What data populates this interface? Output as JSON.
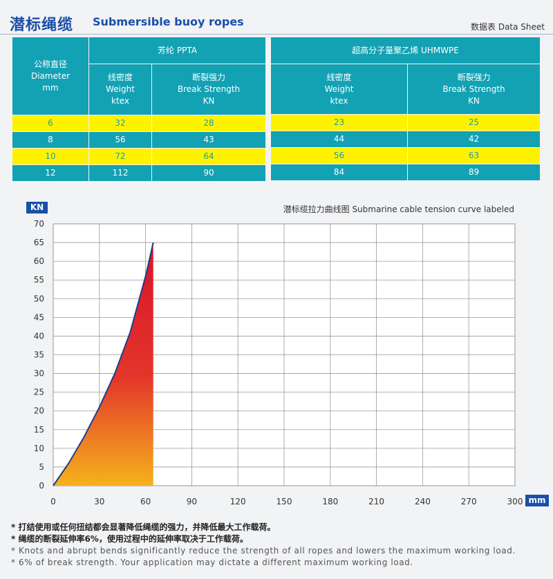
{
  "header": {
    "title_cn": "潜标绳缆",
    "title_en": "Submersible buoy ropes",
    "data_sheet": "数据表  Data Sheet"
  },
  "table": {
    "diameter_header": [
      "公称直径",
      "Diameter",
      "mm"
    ],
    "groups": [
      {
        "name": "芳纶    PPTA",
        "weight_header": [
          "线密度",
          "Weight",
          "ktex"
        ],
        "strength_header": [
          "断裂强力",
          "Break Strength",
          "KN"
        ]
      },
      {
        "name": "超高分子量聚乙烯    UHMWPE",
        "weight_header": [
          "线密度",
          "Weight",
          "ktex"
        ],
        "strength_header": [
          "断裂强力",
          "Break Strength",
          "KN"
        ]
      }
    ],
    "rows": [
      {
        "diameter": "6",
        "ppta_weight": "32",
        "ppta_strength": "28",
        "uhmwpe_weight": "23",
        "uhmwpe_strength": "25",
        "highlight": true
      },
      {
        "diameter": "8",
        "ppta_weight": "56",
        "ppta_strength": "43",
        "uhmwpe_weight": "44",
        "uhmwpe_strength": "42",
        "highlight": false
      },
      {
        "diameter": "10",
        "ppta_weight": "72",
        "ppta_strength": "64",
        "uhmwpe_weight": "56",
        "uhmwpe_strength": "63",
        "highlight": true
      },
      {
        "diameter": "12",
        "ppta_weight": "112",
        "ppta_strength": "90",
        "uhmwpe_weight": "84",
        "uhmwpe_strength": "89",
        "highlight": false
      }
    ]
  },
  "colors": {
    "table_teal": "#13a1b4",
    "table_yellow": "#fff200",
    "brand_blue": "#1a4fa8",
    "fill_top": "#d8142a",
    "fill_bottom": "#f6b21c"
  },
  "chart_data": {
    "type": "area",
    "title": "潜标缆拉力曲线图  Submarine cable tension curve labeled",
    "xlabel": "mm",
    "ylabel": "KN",
    "xlim": [
      0,
      300
    ],
    "ylim": [
      0,
      70
    ],
    "x_ticks": [
      0,
      30,
      60,
      90,
      120,
      150,
      180,
      210,
      240,
      270,
      300
    ],
    "y_ticks": [
      0,
      5,
      10,
      15,
      20,
      25,
      30,
      35,
      40,
      45,
      50,
      55,
      60,
      65,
      70
    ],
    "grid": true,
    "series": [
      {
        "x": [
          0,
          10,
          20,
          30,
          40,
          50,
          60,
          65
        ],
        "y": [
          0,
          6,
          13,
          21,
          30,
          41,
          56,
          65
        ]
      }
    ]
  },
  "notes": [
    "* 打结使用或任何扭结都会显著降低绳缆的强力，并降低最大工作载荷。",
    "* 绳缆的断裂延伸率6%，使用过程中的延伸率取决于工作载荷。",
    "* Knots and abrupt bends significantly reduce the strength of all ropes and lowers the maximum working load.",
    "* 6% of break strength. Your application may dictate a different maximum working load."
  ]
}
